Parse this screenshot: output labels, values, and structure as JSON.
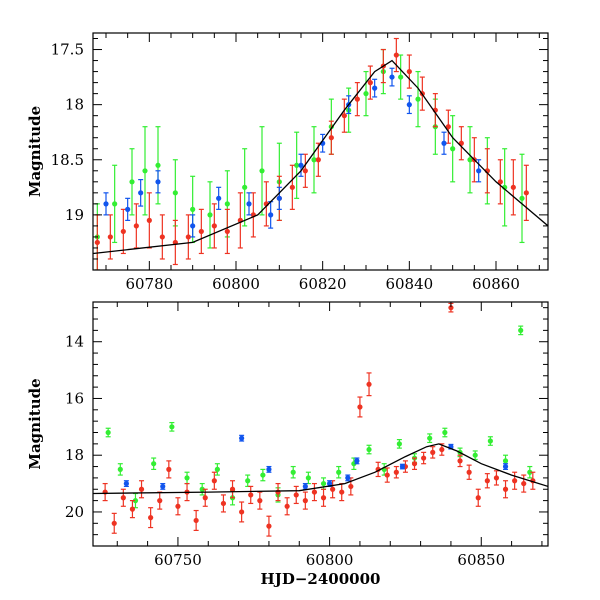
{
  "colors": {
    "green": "#33ee33",
    "red": "#ee3322",
    "blue": "#1155ee",
    "model": "#000000",
    "frame": "#000000"
  },
  "chart_data": [
    {
      "type": "scatter",
      "title": "",
      "xlabel": "",
      "ylabel": "Magnitude",
      "xlim": [
        60767,
        60872
      ],
      "ylim": [
        19.5,
        17.35
      ],
      "y_inverted": true,
      "grid": false,
      "legend": "none",
      "x_ticks": [
        60780,
        60800,
        60820,
        60840,
        60860
      ],
      "x_tick_labels": [
        "60780",
        "60800",
        "60820",
        "60840",
        "60860"
      ],
      "y_ticks": [
        17.5,
        18,
        18.5,
        19
      ],
      "y_tick_labels": [
        "17.5",
        "18",
        "18.5",
        "19"
      ],
      "series": [
        {
          "color": "green",
          "style": "points-with-error-bars",
          "x": [
            60768,
            60772,
            60776,
            60779,
            60782,
            60786,
            60790,
            60794,
            60798,
            60802,
            60806,
            60810,
            60814,
            60818,
            60822,
            60826,
            60830,
            60834,
            60838,
            60842,
            60846,
            60850,
            60854,
            60858,
            60862,
            60866
          ],
          "y": [
            19.2,
            18.9,
            18.7,
            18.6,
            18.55,
            18.8,
            18.95,
            19.0,
            18.9,
            18.75,
            18.6,
            18.7,
            18.55,
            18.5,
            18.2,
            18.05,
            17.9,
            17.7,
            17.75,
            17.95,
            18.2,
            18.4,
            18.5,
            18.6,
            18.75,
            18.85
          ],
          "yerr": [
            0.3,
            0.35,
            0.3,
            0.4,
            0.35,
            0.3,
            0.3,
            0.3,
            0.3,
            0.35,
            0.4,
            0.35,
            0.3,
            0.3,
            0.25,
            0.2,
            0.2,
            0.2,
            0.2,
            0.25,
            0.25,
            0.3,
            0.3,
            0.3,
            0.35,
            0.4
          ]
        },
        {
          "color": "red",
          "style": "points-with-error-bars",
          "x": [
            60768,
            60771,
            60774,
            60777,
            60780,
            60783,
            60786,
            60789,
            60792,
            60795,
            60798,
            60801,
            60804,
            60807,
            60810,
            60813,
            60816,
            60819,
            60822,
            60825,
            60828,
            60831,
            60834,
            60837,
            60840,
            60843,
            60846,
            60849,
            60852,
            60855,
            60858,
            60861,
            60864,
            60867
          ],
          "y": [
            19.25,
            19.2,
            19.15,
            19.1,
            19.05,
            19.2,
            19.25,
            19.2,
            19.15,
            19.1,
            19.15,
            19.05,
            19.0,
            18.9,
            18.85,
            18.75,
            18.6,
            18.5,
            18.3,
            18.1,
            17.95,
            17.8,
            17.65,
            17.55,
            17.7,
            17.9,
            18.05,
            18.2,
            18.35,
            18.5,
            18.6,
            18.7,
            18.75,
            18.8
          ],
          "yerr": [
            0.25,
            0.2,
            0.2,
            0.2,
            0.25,
            0.2,
            0.2,
            0.2,
            0.2,
            0.2,
            0.2,
            0.25,
            0.2,
            0.2,
            0.2,
            0.2,
            0.15,
            0.15,
            0.15,
            0.15,
            0.15,
            0.15,
            0.15,
            0.15,
            0.15,
            0.15,
            0.15,
            0.15,
            0.15,
            0.2,
            0.2,
            0.2,
            0.25,
            0.25
          ]
        },
        {
          "color": "blue",
          "style": "points-with-error-bars",
          "x": [
            60770,
            60775,
            60778,
            60782,
            60790,
            60796,
            60803,
            60808,
            60810,
            60815,
            60820,
            60826,
            60832,
            60836,
            60840,
            60848,
            60856
          ],
          "y": [
            18.9,
            18.95,
            18.8,
            18.7,
            19.1,
            18.85,
            18.9,
            19.0,
            18.85,
            18.55,
            18.35,
            18.0,
            17.85,
            17.75,
            18.0,
            18.35,
            18.6
          ],
          "yerr": [
            0.1,
            0.1,
            0.12,
            0.1,
            0.1,
            0.1,
            0.1,
            0.12,
            0.1,
            0.1,
            0.08,
            0.08,
            0.08,
            0.08,
            0.08,
            0.1,
            0.1
          ]
        },
        {
          "color": "model",
          "style": "line",
          "x": [
            60767,
            60790,
            60805,
            60815,
            60825,
            60832,
            60836,
            60842,
            60850,
            60860,
            60872
          ],
          "y": [
            19.35,
            19.25,
            19.0,
            18.6,
            18.05,
            17.7,
            17.6,
            17.85,
            18.3,
            18.7,
            19.1
          ]
        }
      ]
    },
    {
      "type": "scatter",
      "title": "",
      "xlabel": "HJD−2400000",
      "ylabel": "Magnitude",
      "xlim": [
        60722,
        60872
      ],
      "ylim": [
        21.2,
        12.6
      ],
      "y_inverted": true,
      "grid": false,
      "legend": "none",
      "x_ticks": [
        60750,
        60800,
        60850
      ],
      "x_tick_labels": [
        "60750",
        "60800",
        "60850"
      ],
      "y_ticks": [
        14,
        16,
        18,
        20
      ],
      "y_tick_labels": [
        "14",
        "16",
        "18",
        "20"
      ],
      "series": [
        {
          "color": "green",
          "style": "points-with-error-bars",
          "x": [
            60727,
            60731,
            60736,
            60742,
            60748,
            60753,
            60758,
            60763,
            60768,
            60773,
            60778,
            60783,
            60788,
            60793,
            60798,
            60803,
            60808,
            60813,
            60818,
            60823,
            60828,
            60833,
            60838,
            60843,
            60848,
            60853,
            60858,
            60863,
            60866
          ],
          "y": [
            17.2,
            18.5,
            19.6,
            18.3,
            17.0,
            18.8,
            19.2,
            18.5,
            19.5,
            18.9,
            18.7,
            19.4,
            18.6,
            18.8,
            19.0,
            18.6,
            18.3,
            17.8,
            18.5,
            17.6,
            18.1,
            17.4,
            17.2,
            17.9,
            18.0,
            17.5,
            18.2,
            13.6,
            18.6
          ],
          "yerr": [
            0.15,
            0.2,
            0.25,
            0.2,
            0.15,
            0.2,
            0.2,
            0.2,
            0.25,
            0.2,
            0.2,
            0.25,
            0.2,
            0.2,
            0.2,
            0.2,
            0.2,
            0.15,
            0.2,
            0.15,
            0.15,
            0.15,
            0.15,
            0.15,
            0.15,
            0.15,
            0.2,
            0.15,
            0.2
          ]
        },
        {
          "color": "red",
          "style": "points-with-error-bars",
          "x": [
            60726,
            60729,
            60732,
            60735,
            60738,
            60741,
            60744,
            60747,
            60750,
            60753,
            60756,
            60759,
            60762,
            60765,
            60768,
            60771,
            60774,
            60777,
            60780,
            60783,
            60786,
            60789,
            60792,
            60795,
            60798,
            60801,
            60804,
            60807,
            60810,
            60813,
            60816,
            60819,
            60822,
            60825,
            60828,
            60831,
            60834,
            60837,
            60840,
            60843,
            60846,
            60849,
            60852,
            60855,
            60858,
            60861,
            60864,
            60867
          ],
          "y": [
            19.3,
            20.4,
            19.5,
            19.9,
            19.2,
            20.2,
            19.6,
            18.5,
            19.8,
            19.3,
            20.3,
            19.5,
            18.9,
            19.7,
            19.2,
            20.0,
            19.4,
            19.6,
            20.5,
            19.3,
            19.8,
            19.4,
            19.6,
            19.3,
            19.5,
            19.2,
            19.3,
            19.1,
            16.3,
            15.5,
            18.5,
            18.7,
            18.6,
            18.4,
            18.3,
            18.1,
            17.9,
            17.8,
            12.8,
            18.2,
            18.6,
            19.5,
            18.9,
            18.8,
            19.2,
            18.9,
            19.0,
            18.9
          ],
          "yerr": [
            0.3,
            0.35,
            0.3,
            0.3,
            0.3,
            0.35,
            0.3,
            0.3,
            0.3,
            0.3,
            0.35,
            0.3,
            0.3,
            0.3,
            0.3,
            0.35,
            0.3,
            0.3,
            0.35,
            0.3,
            0.3,
            0.3,
            0.3,
            0.3,
            0.3,
            0.3,
            0.3,
            0.3,
            0.35,
            0.4,
            0.25,
            0.25,
            0.2,
            0.2,
            0.2,
            0.2,
            0.2,
            0.2,
            0.15,
            0.2,
            0.25,
            0.3,
            0.25,
            0.25,
            0.3,
            0.3,
            0.3,
            0.3
          ]
        },
        {
          "color": "blue",
          "style": "points-with-error-bars",
          "x": [
            60733,
            60745,
            60771,
            60780,
            60792,
            60800,
            60806,
            60809,
            60824,
            60840,
            60858
          ],
          "y": [
            19.0,
            19.1,
            17.4,
            18.5,
            19.1,
            19.0,
            18.8,
            18.2,
            18.4,
            17.7,
            18.4
          ],
          "yerr": [
            0.1,
            0.1,
            0.1,
            0.1,
            0.1,
            0.1,
            0.1,
            0.1,
            0.08,
            0.08,
            0.1
          ]
        },
        {
          "color": "model",
          "style": "line",
          "x": [
            60722,
            60760,
            60790,
            60805,
            60815,
            60825,
            60832,
            60836,
            60842,
            60850,
            60860,
            60872
          ],
          "y": [
            19.35,
            19.3,
            19.25,
            19.0,
            18.6,
            18.05,
            17.7,
            17.6,
            17.85,
            18.3,
            18.7,
            19.1
          ]
        }
      ]
    }
  ]
}
